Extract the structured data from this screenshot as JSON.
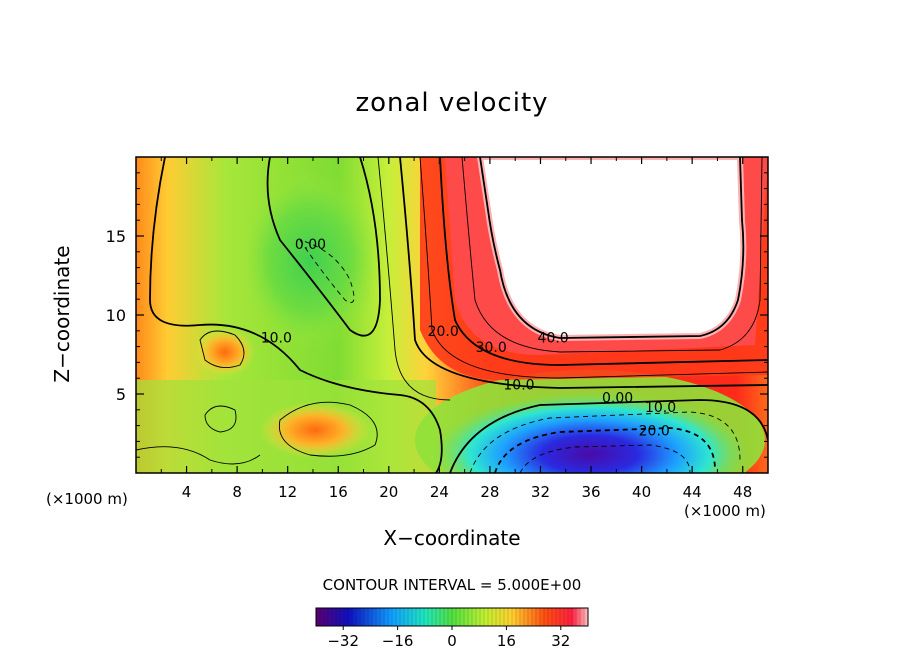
{
  "chart_data": {
    "type": "heatmap",
    "title": "zonal velocity",
    "xlabel": "X−coordinate",
    "ylabel": "Z−coordinate",
    "x_unit": "(×1000 m)",
    "z_unit": "(×1000 m)",
    "xlim": [
      0,
      50
    ],
    "ylim": [
      0,
      20
    ],
    "x_ticks": [
      "4",
      "8",
      "12",
      "16",
      "20",
      "24",
      "28",
      "32",
      "36",
      "40",
      "44",
      "48"
    ],
    "y_ticks": [
      "5",
      "10",
      "15"
    ],
    "contour_interval_text": "CONTOUR INTERVAL = 5.000E+00",
    "contour_labels": [
      {
        "text": "0.00",
        "x": 13.8,
        "z": 14.3
      },
      {
        "text": "10.0",
        "x": 11.1,
        "z": 8.4
      },
      {
        "text": "20.0",
        "x": 24.3,
        "z": 8.8
      },
      {
        "text": "30.0",
        "x": 28.1,
        "z": 7.8
      },
      {
        "text": "40.0",
        "x": 33.0,
        "z": 8.4
      },
      {
        "text": "10.0",
        "x": 30.3,
        "z": 5.4
      },
      {
        "text": "0.00",
        "x": 38.1,
        "z": 4.6
      },
      {
        "text": "10.0",
        "x": 41.5,
        "z": 4.0
      },
      {
        "text": "20.0",
        "x": 41.0,
        "z": 2.5
      }
    ],
    "colorbar": {
      "ticks": [
        "−32",
        "−16",
        "0",
        "16",
        "32"
      ],
      "tick_values": [
        -32,
        -16,
        0,
        16,
        32
      ],
      "range": [
        -40,
        40
      ]
    },
    "masked_region": "white (values above colour range)"
  }
}
